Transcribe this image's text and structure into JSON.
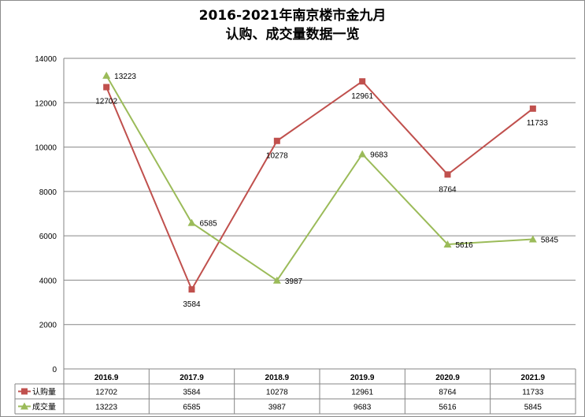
{
  "chart_data": {
    "type": "line",
    "title": [
      "2016-2021年南京楼市金九月",
      "认购、成交量数据一览"
    ],
    "categories": [
      "2016.9",
      "2017.9",
      "2018.9",
      "2019.9",
      "2020.9",
      "2021.9"
    ],
    "ylim": [
      0,
      14000
    ],
    "yticks": [
      0,
      2000,
      4000,
      6000,
      8000,
      10000,
      12000,
      14000
    ],
    "grid": true,
    "legend": "data-table-left",
    "series": [
      {
        "name": "认购量",
        "values": [
          12702,
          3584,
          10278,
          12961,
          8764,
          11733
        ],
        "color": "#c0504d",
        "marker": "square"
      },
      {
        "name": "成交量",
        "values": [
          13223,
          6585,
          3987,
          9683,
          5616,
          5845
        ],
        "color": "#9bbb59",
        "marker": "triangle"
      }
    ]
  }
}
